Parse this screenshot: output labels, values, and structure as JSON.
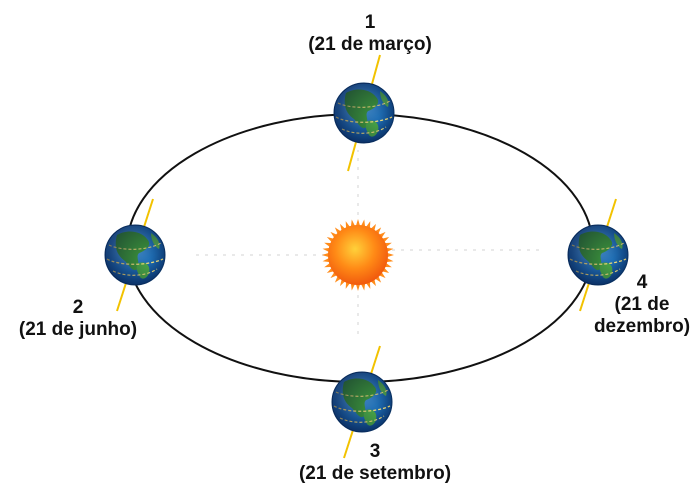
{
  "positions": [
    {
      "id": "1",
      "number": "1",
      "date": "(21 de março)"
    },
    {
      "id": "2",
      "number": "2",
      "date": "(21 de junho)"
    },
    {
      "id": "3",
      "number": "3",
      "date": "(21 de setembro)"
    },
    {
      "id": "4",
      "number": "4",
      "date_line1": "(21 de",
      "date_line2": "dezembro)"
    }
  ],
  "colors": {
    "orbit": "#111111",
    "sun_core": "#ff7a1a",
    "sun_rays": "#ff8c1a",
    "ocean": "#1f6fb5",
    "land": "#3f9a3c",
    "axis": "#f2c200"
  },
  "icons": [
    "sun-icon",
    "earth-globe-icon"
  ]
}
